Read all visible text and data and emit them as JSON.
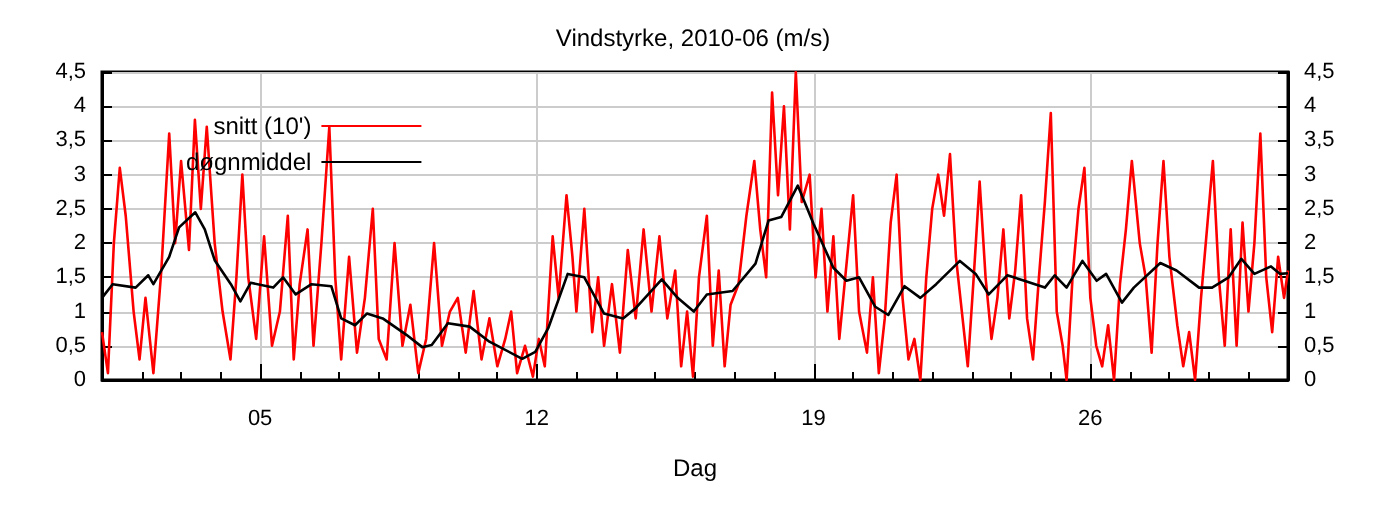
{
  "chart_data": {
    "type": "line",
    "title": "Vindstyrke, 2010-06 (m/s)",
    "xlabel": "Dag",
    "xlim": [
      1,
      31
    ],
    "xticks": [
      {
        "value": 2,
        "label": null
      },
      {
        "value": 3,
        "label": null
      },
      {
        "value": 4,
        "label": null
      },
      {
        "value": 5,
        "label": "05"
      },
      {
        "value": 6,
        "label": null
      },
      {
        "value": 7,
        "label": null
      },
      {
        "value": 8,
        "label": null
      },
      {
        "value": 9,
        "label": null
      },
      {
        "value": 10,
        "label": null
      },
      {
        "value": 11,
        "label": null
      },
      {
        "value": 12,
        "label": "12"
      },
      {
        "value": 13,
        "label": null
      },
      {
        "value": 14,
        "label": null
      },
      {
        "value": 15,
        "label": null
      },
      {
        "value": 16,
        "label": null
      },
      {
        "value": 17,
        "label": null
      },
      {
        "value": 18,
        "label": null
      },
      {
        "value": 19,
        "label": "19"
      },
      {
        "value": 20,
        "label": null
      },
      {
        "value": 21,
        "label": null
      },
      {
        "value": 22,
        "label": null
      },
      {
        "value": 23,
        "label": null
      },
      {
        "value": 24,
        "label": null
      },
      {
        "value": 25,
        "label": null
      },
      {
        "value": 26,
        "label": "26"
      },
      {
        "value": 27,
        "label": null
      },
      {
        "value": 28,
        "label": null
      },
      {
        "value": 29,
        "label": null
      },
      {
        "value": 30,
        "label": null
      }
    ],
    "ylim": [
      0,
      4.5
    ],
    "yticks": [
      0,
      {
        "value": 0.5,
        "label": "0,5"
      },
      1,
      {
        "value": 1.5,
        "label": "1,5"
      },
      2,
      {
        "value": 2.5,
        "label": "2,5"
      },
      3,
      {
        "value": 3.5,
        "label": "3,5"
      },
      4,
      {
        "value": 4.5,
        "label": "4,5"
      }
    ],
    "y2lim": [
      0,
      4.5
    ],
    "y2ticks": [
      0,
      {
        "value": 0.5,
        "label": "0,5"
      },
      1,
      {
        "value": 1.5,
        "label": "1,5"
      },
      2,
      {
        "value": 2.5,
        "label": "2,5"
      },
      3,
      {
        "value": 3.5,
        "label": "3,5"
      },
      4,
      {
        "value": 4.5,
        "label": "4,5"
      }
    ],
    "grid": true,
    "legend": "top left",
    "marker": "none",
    "line_style": "solid",
    "series": [
      {
        "name": "snitt (10')",
        "color": "#ff0000",
        "x": [
          1.0,
          1.15,
          1.3,
          1.45,
          1.6,
          1.8,
          1.95,
          2.1,
          2.3,
          2.5,
          2.7,
          2.85,
          3.0,
          3.2,
          3.35,
          3.5,
          3.65,
          3.85,
          4.05,
          4.25,
          4.4,
          4.55,
          4.7,
          4.9,
          5.1,
          5.3,
          5.5,
          5.7,
          5.85,
          6.0,
          6.2,
          6.35,
          6.55,
          6.75,
          6.9,
          7.05,
          7.25,
          7.45,
          7.65,
          7.85,
          8.0,
          8.2,
          8.4,
          8.6,
          8.8,
          9.0,
          9.2,
          9.4,
          9.6,
          9.8,
          10.0,
          10.2,
          10.4,
          10.6,
          10.8,
          11.0,
          11.2,
          11.35,
          11.5,
          11.7,
          11.9,
          12.05,
          12.2,
          12.4,
          12.55,
          12.75,
          12.9,
          13.0,
          13.2,
          13.4,
          13.55,
          13.7,
          13.9,
          14.1,
          14.3,
          14.5,
          14.7,
          14.9,
          15.1,
          15.3,
          15.5,
          15.65,
          15.8,
          15.95,
          16.1,
          16.3,
          16.45,
          16.6,
          16.75,
          16.9,
          17.1,
          17.3,
          17.5,
          17.65,
          17.8,
          17.95,
          18.1,
          18.25,
          18.4,
          18.55,
          18.7,
          18.9,
          19.05,
          19.2,
          19.35,
          19.5,
          19.65,
          19.85,
          20.0,
          20.15,
          20.35,
          20.5,
          20.65,
          20.8,
          20.95,
          21.1,
          21.25,
          21.4,
          21.55,
          21.7,
          21.85,
          22.0,
          22.15,
          22.3,
          22.45,
          22.6,
          22.75,
          22.9,
          23.05,
          23.2,
          23.35,
          23.5,
          23.65,
          23.8,
          23.95,
          24.1,
          24.25,
          24.4,
          24.55,
          24.7,
          24.85,
          25.0,
          25.15,
          25.3,
          25.4,
          25.55,
          25.7,
          25.85,
          26.0,
          26.15,
          26.3,
          26.45,
          26.6,
          26.75,
          26.9,
          27.05,
          27.25,
          27.4,
          27.55,
          27.7,
          27.85,
          28.0,
          28.2,
          28.35,
          28.5,
          28.65,
          28.8,
          28.95,
          29.1,
          29.25,
          29.4,
          29.55,
          29.7,
          29.85,
          30.0,
          30.15,
          30.3,
          30.45,
          30.6,
          30.75,
          30.9,
          31.0
        ],
        "values": [
          0.7,
          0.1,
          2.0,
          3.1,
          2.4,
          1.0,
          0.3,
          1.2,
          0.1,
          1.6,
          3.6,
          2.0,
          3.2,
          1.9,
          3.8,
          2.5,
          3.7,
          2.0,
          1.0,
          0.3,
          1.5,
          3.0,
          1.5,
          0.6,
          2.1,
          0.5,
          1.0,
          2.4,
          0.3,
          1.4,
          2.2,
          0.5,
          2.0,
          3.7,
          1.5,
          0.3,
          1.8,
          0.4,
          1.2,
          2.5,
          0.6,
          0.3,
          2.0,
          0.5,
          1.1,
          0.1,
          0.6,
          2.0,
          0.5,
          1.0,
          1.2,
          0.4,
          1.3,
          0.3,
          0.9,
          0.2,
          0.6,
          1.0,
          0.1,
          0.5,
          0.05,
          0.6,
          0.2,
          2.1,
          1.2,
          2.7,
          1.8,
          1.0,
          2.5,
          0.7,
          1.5,
          0.5,
          1.4,
          0.4,
          1.9,
          0.9,
          2.2,
          1.0,
          2.1,
          0.9,
          1.6,
          0.2,
          1.0,
          0.05,
          1.5,
          2.4,
          0.5,
          1.6,
          0.2,
          1.1,
          1.4,
          2.4,
          3.2,
          2.2,
          1.5,
          4.2,
          2.7,
          4.0,
          2.2,
          4.5,
          2.6,
          3.0,
          1.5,
          2.5,
          1.0,
          2.1,
          0.6,
          1.8,
          2.7,
          1.0,
          0.4,
          1.5,
          0.1,
          0.9,
          2.3,
          3.0,
          1.2,
          0.3,
          0.6,
          0.0,
          1.5,
          2.5,
          3.0,
          2.4,
          3.3,
          1.8,
          1.0,
          0.2,
          1.5,
          2.9,
          1.5,
          0.6,
          1.2,
          2.2,
          0.9,
          1.6,
          2.7,
          0.9,
          0.3,
          1.5,
          2.6,
          3.9,
          1.0,
          0.5,
          0.0,
          1.5,
          2.5,
          3.1,
          1.2,
          0.5,
          0.2,
          0.8,
          0.0,
          1.4,
          2.2,
          3.2,
          2.0,
          1.5,
          0.4,
          2.0,
          3.2,
          1.8,
          0.8,
          0.2,
          0.7,
          0.0,
          1.2,
          2.2,
          3.2,
          1.5,
          0.5,
          2.2,
          0.5,
          2.3,
          1.0,
          2.0,
          3.6,
          1.5,
          0.7,
          1.8,
          1.2,
          1.6
        ]
      },
      {
        "name": "døgnmiddel",
        "color": "#000000",
        "x": [
          1.0,
          1.27,
          1.85,
          2.17,
          2.3,
          2.7,
          2.95,
          3.36,
          3.6,
          3.85,
          4.26,
          4.5,
          4.76,
          5.33,
          5.58,
          5.9,
          6.3,
          6.8,
          7.05,
          7.4,
          7.7,
          8.1,
          8.7,
          9.1,
          9.34,
          9.75,
          10.3,
          10.8,
          11.63,
          11.96,
          12.29,
          12.78,
          13.2,
          13.7,
          14.18,
          14.5,
          15.16,
          15.56,
          15.97,
          16.3,
          16.95,
          17.53,
          17.86,
          18.18,
          18.6,
          19.0,
          19.5,
          19.83,
          20.15,
          20.56,
          20.89,
          21.3,
          21.7,
          22.1,
          22.7,
          23.1,
          23.43,
          23.9,
          24.33,
          24.85,
          25.1,
          25.4,
          25.8,
          26.16,
          26.4,
          26.8,
          27.1,
          27.77,
          28.18,
          28.75,
          29.08,
          29.5,
          29.82,
          30.15,
          30.57,
          30.8,
          31.0
        ],
        "values": [
          1.2,
          1.4,
          1.35,
          1.53,
          1.4,
          1.8,
          2.23,
          2.45,
          2.2,
          1.75,
          1.4,
          1.15,
          1.42,
          1.35,
          1.5,
          1.25,
          1.4,
          1.37,
          0.9,
          0.8,
          0.97,
          0.9,
          0.66,
          0.48,
          0.51,
          0.83,
          0.78,
          0.56,
          0.31,
          0.41,
          0.76,
          1.55,
          1.5,
          0.97,
          0.9,
          1.05,
          1.47,
          1.2,
          1.0,
          1.25,
          1.3,
          1.7,
          2.33,
          2.38,
          2.84,
          2.28,
          1.64,
          1.45,
          1.5,
          1.07,
          0.95,
          1.37,
          1.2,
          1.4,
          1.74,
          1.55,
          1.25,
          1.53,
          1.45,
          1.35,
          1.53,
          1.35,
          1.74,
          1.45,
          1.55,
          1.13,
          1.35,
          1.71,
          1.6,
          1.35,
          1.35,
          1.5,
          1.77,
          1.55,
          1.66,
          1.55,
          1.56
        ]
      }
    ]
  }
}
